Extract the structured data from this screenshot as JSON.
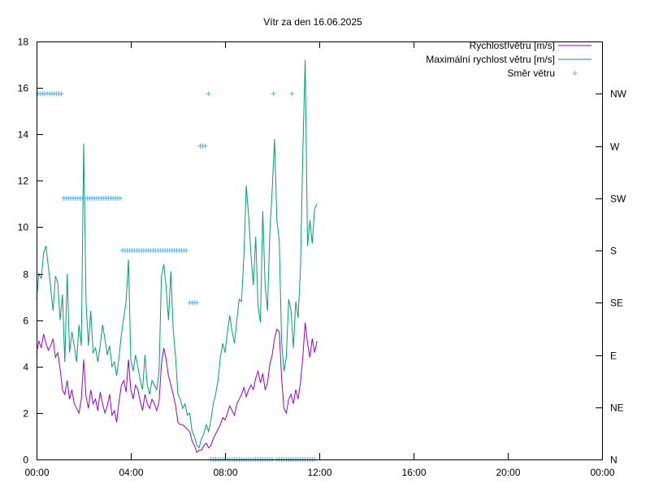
{
  "chart_data": {
    "type": "line",
    "title": "Vítr za den 16.06.2025",
    "xlabel": "",
    "ylabel": "",
    "x_unit": "hours",
    "xlim": [
      0,
      24
    ],
    "ylim": [
      0,
      18
    ],
    "grid": false,
    "legend_position": "top-right",
    "x_ticks": [
      {
        "value": 0,
        "label": "00:00"
      },
      {
        "value": 4,
        "label": "04:00"
      },
      {
        "value": 8,
        "label": "08:00"
      },
      {
        "value": 12,
        "label": "12:00"
      },
      {
        "value": 16,
        "label": "16:00"
      },
      {
        "value": 20,
        "label": "20:00"
      },
      {
        "value": 24,
        "label": "00:00"
      }
    ],
    "y_ticks": [
      0,
      2,
      4,
      6,
      8,
      10,
      12,
      14,
      16,
      18
    ],
    "y2_ticks": [
      {
        "value": 0,
        "label": "N"
      },
      {
        "value": 45,
        "label": "NE"
      },
      {
        "value": 90,
        "label": "E"
      },
      {
        "value": 135,
        "label": "SE"
      },
      {
        "value": 180,
        "label": "S"
      },
      {
        "value": 225,
        "label": "SW"
      },
      {
        "value": 270,
        "label": "W"
      },
      {
        "value": 315,
        "label": "NW"
      }
    ],
    "y2lim": [
      0,
      360
    ],
    "series": [
      {
        "name": "Rychlost větru [m/s]",
        "color": "#9400d3",
        "style": "line",
        "x": [
          0.0,
          0.1,
          0.2,
          0.3,
          0.4,
          0.5,
          0.6,
          0.7,
          0.8,
          0.9,
          1.0,
          1.1,
          1.2,
          1.3,
          1.4,
          1.5,
          1.6,
          1.7,
          1.8,
          1.9,
          2.0,
          2.1,
          2.2,
          2.3,
          2.4,
          2.5,
          2.6,
          2.7,
          2.8,
          2.9,
          3.0,
          3.1,
          3.2,
          3.3,
          3.4,
          3.5,
          3.6,
          3.7,
          3.8,
          3.9,
          4.0,
          4.1,
          4.2,
          4.3,
          4.4,
          4.5,
          4.6,
          4.7,
          4.8,
          4.9,
          5.0,
          5.1,
          5.2,
          5.3,
          5.4,
          5.5,
          5.6,
          5.7,
          5.8,
          5.9,
          6.0,
          6.1,
          6.2,
          6.3,
          6.4,
          6.5,
          6.6,
          6.7,
          6.8,
          6.9,
          7.0,
          7.1,
          7.2,
          7.3,
          7.4,
          7.5,
          7.6,
          7.7,
          7.8,
          7.9,
          8.0,
          8.1,
          8.2,
          8.3,
          8.4,
          8.5,
          8.6,
          8.7,
          8.8,
          8.9,
          9.0,
          9.1,
          9.2,
          9.3,
          9.4,
          9.5,
          9.6,
          9.7,
          9.8,
          9.9,
          10.0,
          10.1,
          10.2,
          10.3,
          10.4,
          10.5,
          10.6,
          10.7,
          10.8,
          10.9,
          11.0,
          11.1,
          11.2,
          11.3,
          11.4,
          11.5,
          11.6,
          11.7,
          11.8,
          11.9
        ],
        "values": [
          4.6,
          5.1,
          4.8,
          5.4,
          5.0,
          4.7,
          4.9,
          5.2,
          4.4,
          4.6,
          3.9,
          3.0,
          2.8,
          3.4,
          2.6,
          3.0,
          2.4,
          2.2,
          2.0,
          2.6,
          4.3,
          2.7,
          2.2,
          3.0,
          2.4,
          2.6,
          2.1,
          2.9,
          2.4,
          2.0,
          2.3,
          2.8,
          1.9,
          2.1,
          1.6,
          2.5,
          3.2,
          3.4,
          2.9,
          4.3,
          3.0,
          2.6,
          3.2,
          3.0,
          2.5,
          2.1,
          2.8,
          2.4,
          2.2,
          2.6,
          2.4,
          2.1,
          2.5,
          4.1,
          4.8,
          4.3,
          3.6,
          3.2,
          2.8,
          2.3,
          1.6,
          1.5,
          1.5,
          1.4,
          1.3,
          1.2,
          0.8,
          0.6,
          0.3,
          0.4,
          0.4,
          0.6,
          0.7,
          0.5,
          0.6,
          0.9,
          1.1,
          1.3,
          1.5,
          1.8,
          1.7,
          2.0,
          2.3,
          2.1,
          1.9,
          2.4,
          2.6,
          2.8,
          3.1,
          2.7,
          3.0,
          3.2,
          3.0,
          3.5,
          3.8,
          3.3,
          3.7,
          3.0,
          3.3,
          4.1,
          4.5,
          5.2,
          5.6,
          5.5,
          3.5,
          2.2,
          2.0,
          2.6,
          2.8,
          2.4,
          3.0,
          2.6,
          3.3,
          4.4,
          5.9,
          5.0,
          4.4,
          5.2,
          4.6,
          5.1
        ]
      },
      {
        "name": "Maximální rychlost větru [m/s]",
        "color": "#009e73",
        "style": "line",
        "x": [
          0.0,
          0.1,
          0.2,
          0.3,
          0.4,
          0.5,
          0.6,
          0.7,
          0.8,
          0.9,
          1.0,
          1.1,
          1.2,
          1.3,
          1.4,
          1.5,
          1.6,
          1.7,
          1.8,
          1.9,
          2.0,
          2.1,
          2.2,
          2.3,
          2.4,
          2.5,
          2.6,
          2.7,
          2.8,
          2.9,
          3.0,
          3.1,
          3.2,
          3.3,
          3.4,
          3.5,
          3.6,
          3.7,
          3.8,
          3.9,
          4.0,
          4.1,
          4.2,
          4.3,
          4.4,
          4.5,
          4.6,
          4.7,
          4.8,
          4.9,
          5.0,
          5.1,
          5.2,
          5.3,
          5.4,
          5.5,
          5.6,
          5.7,
          5.8,
          5.9,
          6.0,
          6.1,
          6.2,
          6.3,
          6.4,
          6.5,
          6.6,
          6.7,
          6.8,
          6.9,
          7.0,
          7.1,
          7.2,
          7.3,
          7.4,
          7.5,
          7.6,
          7.7,
          7.8,
          7.9,
          8.0,
          8.1,
          8.2,
          8.3,
          8.4,
          8.5,
          8.6,
          8.7,
          8.8,
          8.9,
          9.0,
          9.1,
          9.2,
          9.3,
          9.4,
          9.5,
          9.6,
          9.7,
          9.8,
          9.9,
          10.0,
          10.1,
          10.2,
          10.3,
          10.4,
          10.5,
          10.6,
          10.7,
          10.8,
          10.9,
          11.0,
          11.1,
          11.2,
          11.3,
          11.4,
          11.5,
          11.6,
          11.7,
          11.8,
          11.9
        ],
        "values": [
          6.9,
          8.0,
          7.8,
          8.9,
          9.2,
          8.3,
          7.4,
          6.4,
          7.9,
          7.6,
          6.0,
          7.1,
          4.2,
          8.0,
          4.6,
          5.5,
          4.9,
          4.2,
          5.8,
          4.9,
          13.6,
          6.8,
          4.9,
          6.4,
          4.6,
          4.8,
          4.2,
          4.9,
          5.8,
          5.2,
          4.5,
          4.9,
          4.0,
          4.2,
          3.6,
          4.4,
          5.4,
          6.1,
          6.8,
          8.6,
          4.3,
          3.8,
          4.5,
          4.0,
          3.4,
          3.0,
          4.5,
          3.2,
          2.8,
          3.4,
          3.2,
          3.0,
          3.8,
          7.9,
          8.4,
          7.4,
          6.0,
          8.1,
          5.6,
          4.4,
          2.8,
          2.6,
          2.2,
          2.4,
          1.9,
          2.0,
          1.2,
          1.0,
          0.6,
          0.5,
          0.9,
          1.1,
          1.5,
          1.2,
          1.7,
          2.4,
          2.8,
          3.4,
          4.4,
          5.0,
          4.6,
          5.5,
          6.2,
          5.5,
          5.0,
          6.0,
          6.9,
          6.8,
          8.8,
          11.8,
          10.5,
          8.8,
          7.5,
          9.6,
          6.6,
          5.9,
          10.7,
          7.5,
          6.4,
          9.8,
          11.6,
          13.8,
          10.3,
          9.4,
          5.1,
          3.8,
          4.4,
          6.9,
          6.4,
          4.8,
          6.8,
          6.1,
          8.2,
          13.2,
          17.2,
          9.2,
          10.3,
          9.3,
          10.8,
          11.0
        ]
      },
      {
        "name": "Směr větru",
        "color": "#56b4e9",
        "style": "points",
        "axis": "y2",
        "x": [
          0.05,
          0.15,
          0.25,
          0.35,
          0.45,
          0.55,
          0.65,
          0.75,
          0.85,
          0.95,
          1.05,
          1.15,
          1.25,
          1.35,
          1.45,
          1.55,
          1.65,
          1.75,
          1.85,
          1.95,
          2.05,
          2.15,
          2.25,
          2.35,
          2.45,
          2.55,
          2.65,
          2.75,
          2.85,
          2.95,
          3.05,
          3.15,
          3.25,
          3.35,
          3.45,
          3.55,
          3.65,
          3.75,
          3.85,
          3.95,
          4.05,
          4.15,
          4.25,
          4.35,
          4.45,
          4.55,
          4.65,
          4.75,
          4.85,
          4.95,
          5.05,
          5.15,
          5.25,
          5.35,
          5.45,
          5.55,
          5.65,
          5.75,
          5.85,
          5.95,
          6.05,
          6.15,
          6.25,
          6.35,
          6.5,
          6.6,
          6.7,
          6.8,
          6.95,
          7.05,
          7.15,
          7.3,
          7.4,
          7.5,
          7.6,
          7.7,
          7.8,
          7.9,
          8.0,
          8.1,
          8.2,
          8.3,
          8.4,
          8.5,
          8.6,
          8.7,
          8.8,
          8.9,
          9.0,
          9.1,
          9.2,
          9.3,
          9.4,
          9.5,
          9.6,
          9.7,
          9.8,
          9.9,
          10.0,
          10.05,
          10.2,
          10.3,
          10.4,
          10.5,
          10.6,
          10.7,
          10.8,
          10.85,
          10.9,
          11.0,
          11.1,
          11.2,
          11.3,
          11.4,
          11.5,
          11.6,
          11.7,
          11.8
        ],
        "values": [
          315,
          315,
          315,
          315,
          315,
          315,
          315,
          315,
          315,
          315,
          315,
          225,
          225,
          225,
          225,
          225,
          225,
          225,
          225,
          225,
          225,
          225,
          225,
          225,
          225,
          225,
          225,
          225,
          225,
          225,
          225,
          225,
          225,
          225,
          225,
          225,
          180,
          180,
          180,
          180,
          180,
          180,
          180,
          180,
          180,
          180,
          180,
          180,
          180,
          180,
          180,
          180,
          180,
          180,
          180,
          180,
          180,
          180,
          180,
          180,
          180,
          180,
          180,
          180,
          135,
          135,
          135,
          135,
          270,
          270,
          270,
          315,
          0,
          0,
          0,
          0,
          0,
          0,
          0,
          0,
          0,
          0,
          0,
          0,
          0,
          0,
          0,
          0,
          0,
          0,
          0,
          0,
          0,
          0,
          0,
          0,
          0,
          0,
          0,
          315,
          0,
          0,
          0,
          0,
          0,
          0,
          0,
          315,
          0,
          0,
          0,
          0,
          0,
          0,
          0,
          0,
          0,
          0
        ]
      }
    ]
  }
}
